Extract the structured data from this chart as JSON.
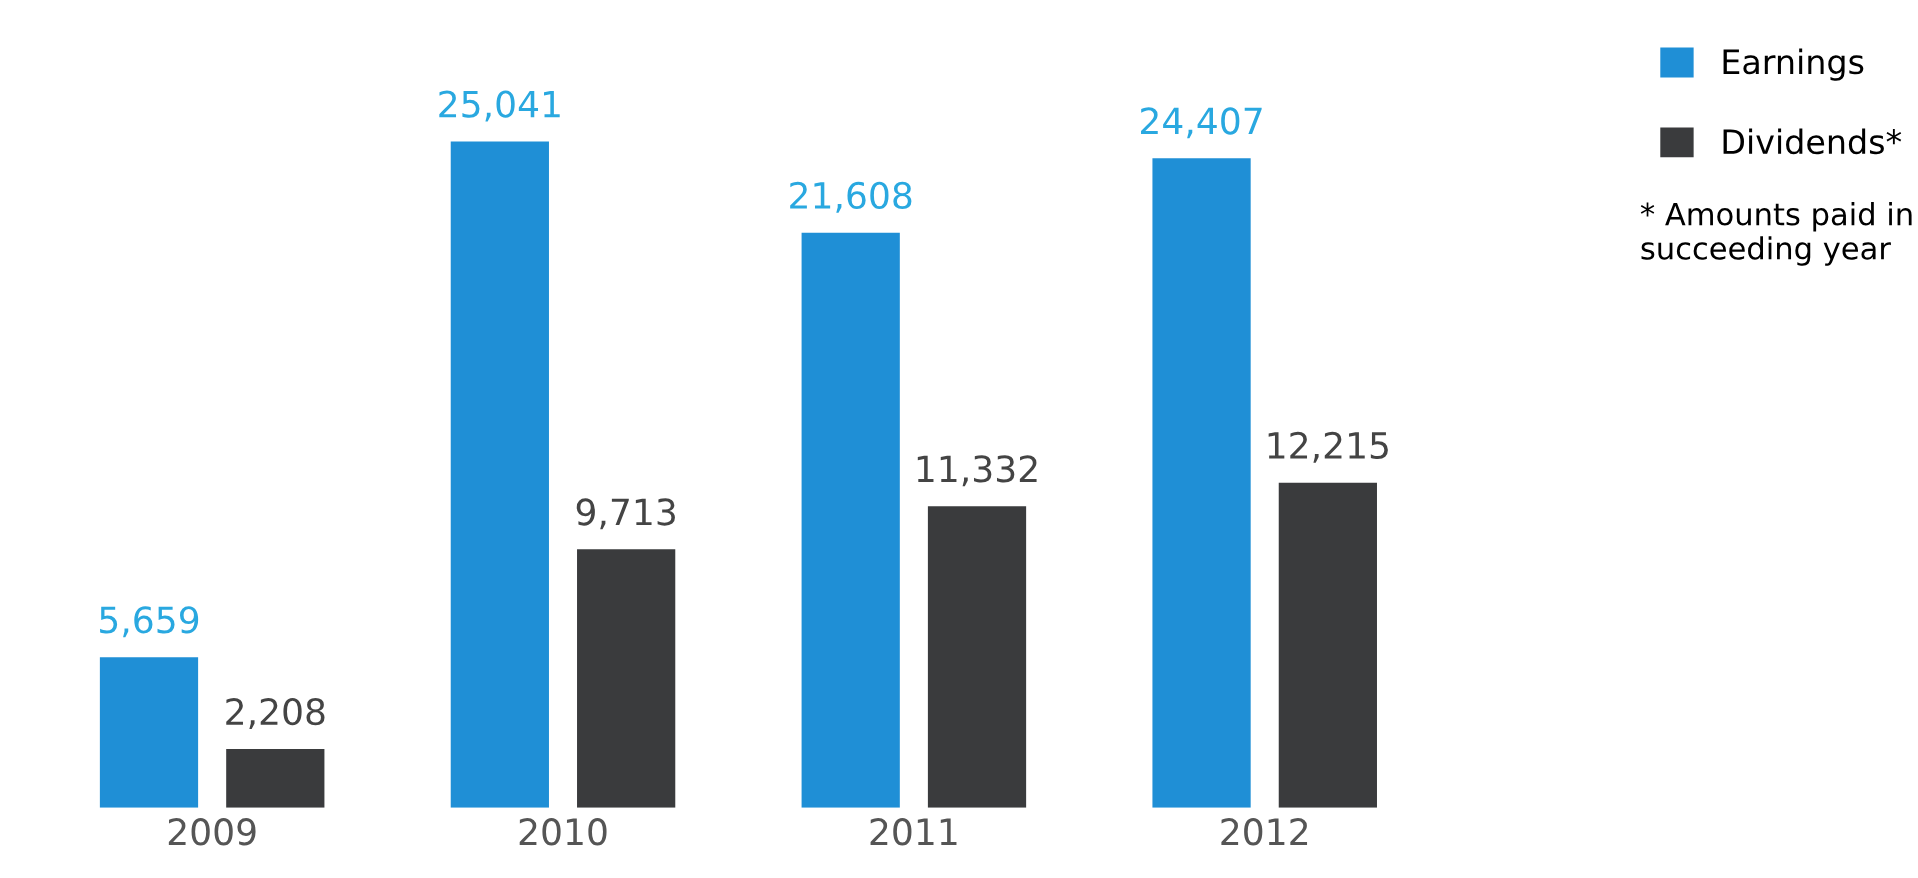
{
  "chart_data": {
    "type": "bar",
    "categories": [
      "2009",
      "2010",
      "2011",
      "2012"
    ],
    "series": [
      {
        "name": "Earnings",
        "color": "#1f8fd6",
        "values": [
          5659,
          25041,
          21608,
          24407
        ],
        "value_labels": [
          "5,659",
          "25,041",
          "21,608",
          "24,407"
        ]
      },
      {
        "name": "Dividends*",
        "color": "#3a3b3d",
        "values": [
          2208,
          9713,
          11332,
          12215
        ],
        "value_labels": [
          "2,208",
          "9,713",
          "11,332",
          "12,215"
        ]
      }
    ],
    "legend": "top right",
    "grid": false,
    "annotations": [
      "* Amounts paid in succeeding year"
    ]
  }
}
